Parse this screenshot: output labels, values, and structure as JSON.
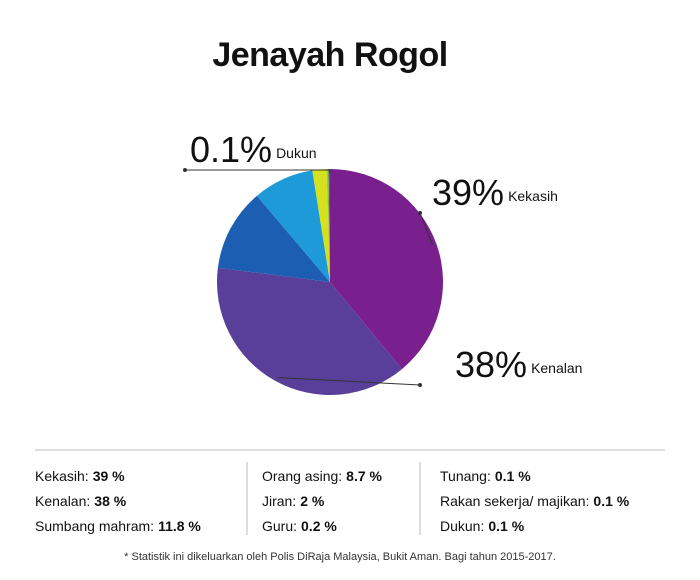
{
  "chart_data": {
    "type": "pie",
    "title": "Jenayah Rogol",
    "categories": [
      "Kekasih",
      "Kenalan",
      "Sumbang mahram",
      "Orang asing",
      "Jiran",
      "Guru",
      "Tunang",
      "Rakan sekerja/ majikan",
      "Dukun"
    ],
    "values": [
      39,
      38,
      11.8,
      8.7,
      2,
      0.2,
      0.1,
      0.1,
      0.1
    ],
    "value_labels": [
      "39 %",
      "38 %",
      "11.8 %",
      "8.7 %",
      "2 %",
      "0.2 %",
      "0.1 %",
      "0.1 %",
      "0.1 %"
    ],
    "legend_labels": [
      "Kekasih:",
      "Kenalan:",
      "Sumbang mahram:",
      "Orang asing:",
      "Jiran:",
      "Guru:",
      "Tunang:",
      "Rakan sekerja/ majikan:",
      "Dukun:"
    ],
    "callout_labels": [
      "39%",
      "38%",
      null,
      null,
      null,
      null,
      null,
      null,
      "0.1%"
    ],
    "colors": [
      "#7a1f8e",
      "#5a3f9a",
      "#1c5fb2",
      "#1f9ad8",
      "#d6e11e",
      "#a8c92c",
      "#5bab35",
      "#2d8c3c",
      "#0e6b35"
    ],
    "note": "* Statistik ini dikeluarkan oleh Polis DiRaja Malaysia, Bukit Aman. Bagi tahun 2015-2017."
  }
}
